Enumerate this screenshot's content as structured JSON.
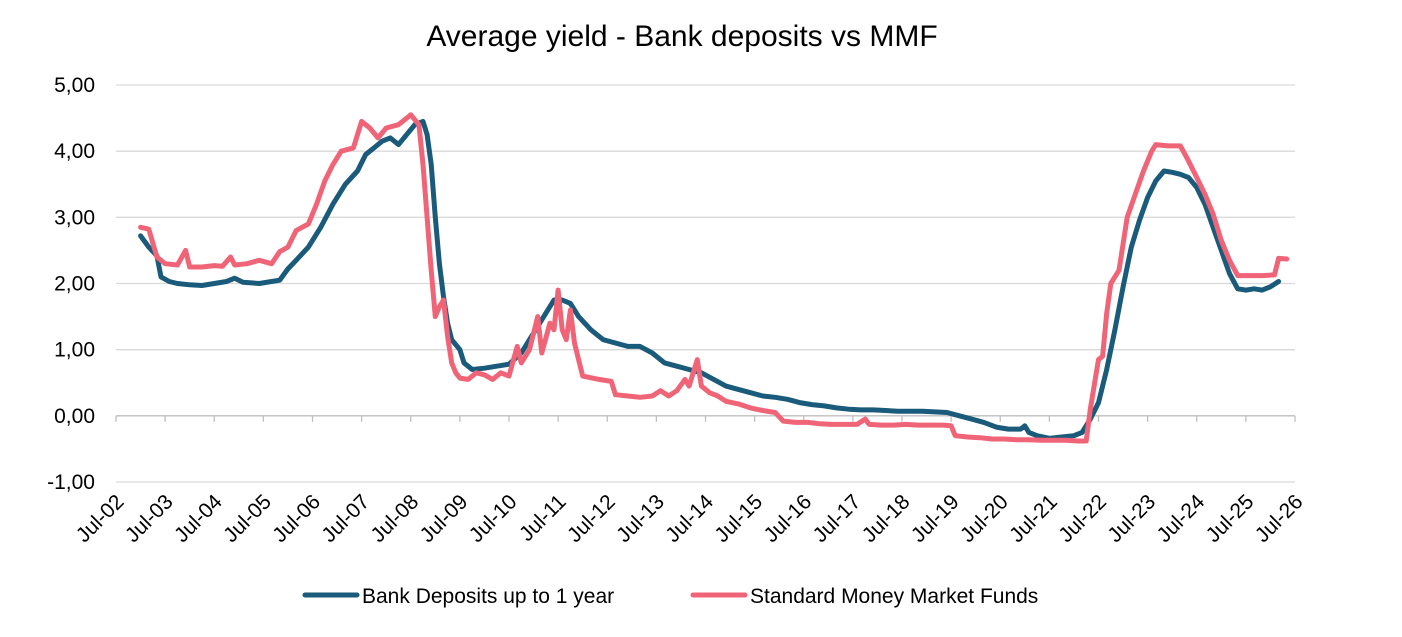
{
  "chart_data": {
    "type": "line",
    "title": "Average yield - Bank deposits vs MMF",
    "xlabel": "",
    "ylabel": "",
    "ylim": [
      -1,
      5
    ],
    "yticks": [
      "-1,00",
      "0,00",
      "1,00",
      "2,00",
      "3,00",
      "4,00",
      "5,00"
    ],
    "yticks_values": [
      -1,
      0,
      1,
      2,
      3,
      4,
      5
    ],
    "x_range": [
      "2002-07",
      "2026-07"
    ],
    "xticks": [
      "Jul-02",
      "Jul-03",
      "Jul-04",
      "Jul-05",
      "Jul-06",
      "Jul-07",
      "Jul-08",
      "Jul-09",
      "Jul-10",
      "Jul-11",
      "Jul-12",
      "Jul-13",
      "Jul-14",
      "Jul-15",
      "Jul-16",
      "Jul-17",
      "Jul-18",
      "Jul-19",
      "Jul-20",
      "Jul-21",
      "Jul-22",
      "Jul-23",
      "Jul-24",
      "Jul-25",
      "Jul-26"
    ],
    "grid": "horizontal",
    "legend_position": "bottom",
    "series": [
      {
        "name": "Bank Deposits up to 1 year",
        "color": "#1a5a7a",
        "points": [
          [
            "2003-01",
            2.72
          ],
          [
            "2003-03",
            2.55
          ],
          [
            "2003-05",
            2.42
          ],
          [
            "2003-06",
            2.1
          ],
          [
            "2003-08",
            2.03
          ],
          [
            "2003-10",
            2.0
          ],
          [
            "2004-01",
            1.98
          ],
          [
            "2004-04",
            1.97
          ],
          [
            "2004-07",
            2.0
          ],
          [
            "2004-10",
            2.03
          ],
          [
            "2004-12",
            2.08
          ],
          [
            "2005-02",
            2.02
          ],
          [
            "2005-06",
            2.0
          ],
          [
            "2005-09",
            2.03
          ],
          [
            "2005-11",
            2.05
          ],
          [
            "2006-01",
            2.22
          ],
          [
            "2006-03",
            2.35
          ],
          [
            "2006-06",
            2.55
          ],
          [
            "2006-09",
            2.85
          ],
          [
            "2006-12",
            3.2
          ],
          [
            "2007-03",
            3.5
          ],
          [
            "2007-06",
            3.7
          ],
          [
            "2007-08",
            3.95
          ],
          [
            "2007-10",
            4.05
          ],
          [
            "2007-12",
            4.15
          ],
          [
            "2008-02",
            4.2
          ],
          [
            "2008-04",
            4.1
          ],
          [
            "2008-06",
            4.25
          ],
          [
            "2008-08",
            4.4
          ],
          [
            "2008-10",
            4.45
          ],
          [
            "2008-11",
            4.25
          ],
          [
            "2008-12",
            3.8
          ],
          [
            "2009-01",
            3.0
          ],
          [
            "2009-02",
            2.3
          ],
          [
            "2009-03",
            1.8
          ],
          [
            "2009-04",
            1.4
          ],
          [
            "2009-05",
            1.15
          ],
          [
            "2009-07",
            1.0
          ],
          [
            "2009-08",
            0.8
          ],
          [
            "2009-10",
            0.7
          ],
          [
            "2010-01",
            0.72
          ],
          [
            "2010-04",
            0.75
          ],
          [
            "2010-07",
            0.78
          ],
          [
            "2010-10",
            0.95
          ],
          [
            "2011-01",
            1.25
          ],
          [
            "2011-04",
            1.55
          ],
          [
            "2011-06",
            1.75
          ],
          [
            "2011-08",
            1.75
          ],
          [
            "2011-10",
            1.7
          ],
          [
            "2011-12",
            1.5
          ],
          [
            "2012-03",
            1.3
          ],
          [
            "2012-06",
            1.15
          ],
          [
            "2012-09",
            1.1
          ],
          [
            "2012-12",
            1.05
          ],
          [
            "2013-03",
            1.05
          ],
          [
            "2013-06",
            0.95
          ],
          [
            "2013-09",
            0.8
          ],
          [
            "2013-12",
            0.75
          ],
          [
            "2014-03",
            0.7
          ],
          [
            "2014-06",
            0.65
          ],
          [
            "2014-09",
            0.55
          ],
          [
            "2014-12",
            0.45
          ],
          [
            "2015-03",
            0.4
          ],
          [
            "2015-06",
            0.35
          ],
          [
            "2015-09",
            0.3
          ],
          [
            "2015-12",
            0.28
          ],
          [
            "2016-03",
            0.25
          ],
          [
            "2016-06",
            0.2
          ],
          [
            "2016-09",
            0.17
          ],
          [
            "2016-12",
            0.15
          ],
          [
            "2017-03",
            0.12
          ],
          [
            "2017-06",
            0.1
          ],
          [
            "2017-09",
            0.09
          ],
          [
            "2017-12",
            0.09
          ],
          [
            "2018-03",
            0.08
          ],
          [
            "2018-06",
            0.07
          ],
          [
            "2018-09",
            0.07
          ],
          [
            "2018-12",
            0.07
          ],
          [
            "2019-03",
            0.06
          ],
          [
            "2019-06",
            0.05
          ],
          [
            "2019-09",
            0.0
          ],
          [
            "2019-12",
            -0.05
          ],
          [
            "2020-03",
            -0.1
          ],
          [
            "2020-06",
            -0.17
          ],
          [
            "2020-09",
            -0.2
          ],
          [
            "2020-12",
            -0.2
          ],
          [
            "2021-01",
            -0.15
          ],
          [
            "2021-02",
            -0.25
          ],
          [
            "2021-04",
            -0.3
          ],
          [
            "2021-07",
            -0.34
          ],
          [
            "2021-10",
            -0.32
          ],
          [
            "2022-01",
            -0.3
          ],
          [
            "2022-03",
            -0.25
          ],
          [
            "2022-05",
            -0.05
          ],
          [
            "2022-07",
            0.2
          ],
          [
            "2022-09",
            0.7
          ],
          [
            "2022-11",
            1.3
          ],
          [
            "2023-01",
            1.95
          ],
          [
            "2023-03",
            2.55
          ],
          [
            "2023-05",
            2.95
          ],
          [
            "2023-07",
            3.3
          ],
          [
            "2023-09",
            3.55
          ],
          [
            "2023-11",
            3.7
          ],
          [
            "2024-01",
            3.68
          ],
          [
            "2024-03",
            3.65
          ],
          [
            "2024-05",
            3.6
          ],
          [
            "2024-07",
            3.45
          ],
          [
            "2024-09",
            3.2
          ],
          [
            "2024-11",
            2.85
          ],
          [
            "2025-01",
            2.5
          ],
          [
            "2025-03",
            2.15
          ],
          [
            "2025-05",
            1.92
          ],
          [
            "2025-07",
            1.9
          ],
          [
            "2025-09",
            1.92
          ],
          [
            "2025-11",
            1.9
          ],
          [
            "2026-01",
            1.95
          ],
          [
            "2026-03",
            2.03
          ]
        ]
      },
      {
        "name": "Standard Money Market Funds",
        "color": "#f06478",
        "points": [
          [
            "2003-01",
            2.85
          ],
          [
            "2003-03",
            2.82
          ],
          [
            "2003-05",
            2.4
          ],
          [
            "2003-07",
            2.3
          ],
          [
            "2003-10",
            2.28
          ],
          [
            "2003-12",
            2.5
          ],
          [
            "2004-01",
            2.25
          ],
          [
            "2004-04",
            2.25
          ],
          [
            "2004-07",
            2.27
          ],
          [
            "2004-09",
            2.26
          ],
          [
            "2004-11",
            2.4
          ],
          [
            "2004-12",
            2.28
          ],
          [
            "2005-03",
            2.3
          ],
          [
            "2005-06",
            2.35
          ],
          [
            "2005-09",
            2.3
          ],
          [
            "2005-11",
            2.48
          ],
          [
            "2006-01",
            2.55
          ],
          [
            "2006-03",
            2.8
          ],
          [
            "2006-06",
            2.9
          ],
          [
            "2006-08",
            3.2
          ],
          [
            "2006-10",
            3.55
          ],
          [
            "2006-12",
            3.8
          ],
          [
            "2007-02",
            4.0
          ],
          [
            "2007-05",
            4.05
          ],
          [
            "2007-07",
            4.45
          ],
          [
            "2007-09",
            4.35
          ],
          [
            "2007-11",
            4.2
          ],
          [
            "2008-01",
            4.35
          ],
          [
            "2008-04",
            4.4
          ],
          [
            "2008-07",
            4.55
          ],
          [
            "2008-09",
            4.4
          ],
          [
            "2008-10",
            3.8
          ],
          [
            "2008-11",
            3.0
          ],
          [
            "2008-12",
            2.2
          ],
          [
            "2009-01",
            1.5
          ],
          [
            "2009-02",
            1.65
          ],
          [
            "2009-03",
            1.75
          ],
          [
            "2009-04",
            1.2
          ],
          [
            "2009-05",
            0.8
          ],
          [
            "2009-06",
            0.65
          ],
          [
            "2009-07",
            0.57
          ],
          [
            "2009-09",
            0.55
          ],
          [
            "2009-11",
            0.65
          ],
          [
            "2010-01",
            0.62
          ],
          [
            "2010-03",
            0.55
          ],
          [
            "2010-05",
            0.65
          ],
          [
            "2010-07",
            0.6
          ],
          [
            "2010-09",
            1.05
          ],
          [
            "2010-10",
            0.8
          ],
          [
            "2010-12",
            1.0
          ],
          [
            "2011-02",
            1.5
          ],
          [
            "2011-03",
            0.95
          ],
          [
            "2011-05",
            1.4
          ],
          [
            "2011-06",
            1.3
          ],
          [
            "2011-07",
            1.9
          ],
          [
            "2011-08",
            1.3
          ],
          [
            "2011-09",
            1.15
          ],
          [
            "2011-10",
            1.6
          ],
          [
            "2011-11",
            1.1
          ],
          [
            "2011-12",
            0.85
          ],
          [
            "2012-01",
            0.6
          ],
          [
            "2012-05",
            0.55
          ],
          [
            "2012-08",
            0.52
          ],
          [
            "2012-09",
            0.32
          ],
          [
            "2012-12",
            0.3
          ],
          [
            "2013-03",
            0.28
          ],
          [
            "2013-06",
            0.3
          ],
          [
            "2013-08",
            0.38
          ],
          [
            "2013-10",
            0.3
          ],
          [
            "2013-12",
            0.38
          ],
          [
            "2014-02",
            0.55
          ],
          [
            "2014-03",
            0.45
          ],
          [
            "2014-05",
            0.85
          ],
          [
            "2014-06",
            0.45
          ],
          [
            "2014-08",
            0.35
          ],
          [
            "2014-10",
            0.3
          ],
          [
            "2014-12",
            0.22
          ],
          [
            "2015-03",
            0.18
          ],
          [
            "2015-06",
            0.12
          ],
          [
            "2015-09",
            0.08
          ],
          [
            "2015-12",
            0.05
          ],
          [
            "2016-02",
            -0.08
          ],
          [
            "2016-05",
            -0.1
          ],
          [
            "2016-08",
            -0.1
          ],
          [
            "2016-11",
            -0.12
          ],
          [
            "2017-02",
            -0.13
          ],
          [
            "2017-05",
            -0.13
          ],
          [
            "2017-08",
            -0.13
          ],
          [
            "2017-10",
            -0.05
          ],
          [
            "2017-11",
            -0.13
          ],
          [
            "2018-02",
            -0.14
          ],
          [
            "2018-05",
            -0.14
          ],
          [
            "2018-08",
            -0.13
          ],
          [
            "2018-11",
            -0.14
          ],
          [
            "2019-02",
            -0.14
          ],
          [
            "2019-05",
            -0.14
          ],
          [
            "2019-07",
            -0.15
          ],
          [
            "2019-08",
            -0.3
          ],
          [
            "2019-11",
            -0.32
          ],
          [
            "2020-02",
            -0.33
          ],
          [
            "2020-05",
            -0.35
          ],
          [
            "2020-08",
            -0.35
          ],
          [
            "2020-11",
            -0.36
          ],
          [
            "2021-02",
            -0.36
          ],
          [
            "2021-05",
            -0.37
          ],
          [
            "2021-08",
            -0.37
          ],
          [
            "2021-11",
            -0.37
          ],
          [
            "2022-02",
            -0.38
          ],
          [
            "2022-04",
            -0.38
          ],
          [
            "2022-05",
            0.1
          ],
          [
            "2022-07",
            0.85
          ],
          [
            "2022-08",
            0.9
          ],
          [
            "2022-09",
            1.55
          ],
          [
            "2022-10",
            2.0
          ],
          [
            "2022-12",
            2.2
          ],
          [
            "2023-02",
            3.0
          ],
          [
            "2023-04",
            3.35
          ],
          [
            "2023-06",
            3.7
          ],
          [
            "2023-08",
            4.0
          ],
          [
            "2023-09",
            4.1
          ],
          [
            "2023-12",
            4.08
          ],
          [
            "2024-03",
            4.08
          ],
          [
            "2024-05",
            3.85
          ],
          [
            "2024-07",
            3.6
          ],
          [
            "2024-09",
            3.35
          ],
          [
            "2024-11",
            3.05
          ],
          [
            "2025-01",
            2.65
          ],
          [
            "2025-03",
            2.35
          ],
          [
            "2025-05",
            2.12
          ],
          [
            "2025-08",
            2.12
          ],
          [
            "2025-11",
            2.12
          ],
          [
            "2026-02",
            2.13
          ],
          [
            "2026-03",
            2.38
          ],
          [
            "2026-05",
            2.37
          ]
        ]
      }
    ]
  }
}
